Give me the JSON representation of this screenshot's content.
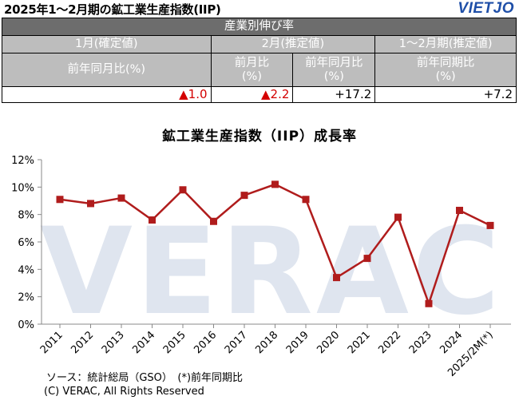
{
  "header": {
    "title": "2025年1～2月期の鉱工業生産指数(IIP)",
    "brand": "VIETJO"
  },
  "table": {
    "section_title": "産業別伸び率",
    "col1_period": "1月(確定値)",
    "col2_period": "2月(推定値)",
    "col3_period": "1～2月期(推定値)",
    "col1_metric": "前年同月比(%)",
    "col2a_metric": "前月比(%)",
    "col2b_metric": "前年同月比(%)",
    "col3_metric": "前年同期比(%)",
    "col2a_metric_l1": "前月比",
    "col2a_metric_l2": "(%)",
    "col2b_metric_l1": "前年同月比",
    "col2b_metric_l2": "(%)",
    "col3_metric_l1": "前年同期比",
    "col3_metric_l2": "(%)",
    "values": [
      "▲1.0",
      "▲2.2",
      "+17.2",
      "+7.2"
    ],
    "negative_color": "#d40000"
  },
  "chart_data": {
    "type": "line",
    "title": "鉱工業生産指数（IIP）成長率",
    "categories": [
      "2011",
      "2012",
      "2013",
      "2014",
      "2015",
      "2016",
      "2017",
      "2018",
      "2019",
      "2020",
      "2021",
      "2022",
      "2023",
      "2024",
      "2025/2M(*)"
    ],
    "values": [
      9.1,
      8.8,
      9.2,
      7.6,
      9.8,
      7.5,
      9.4,
      10.2,
      9.1,
      3.4,
      4.8,
      7.8,
      1.5,
      8.3,
      7.2
    ],
    "ylim": [
      0,
      12
    ],
    "yticks": [
      "0%",
      "2%",
      "4%",
      "6%",
      "8%",
      "10%",
      "12%"
    ],
    "grid": false,
    "line_color": "#b01c1c",
    "watermark": "VERAC"
  },
  "footer": {
    "source": "ソース：統計総局（GSO）　(*)前年同期比",
    "copyright": "(C) VERAC, All Rights Reserved"
  }
}
